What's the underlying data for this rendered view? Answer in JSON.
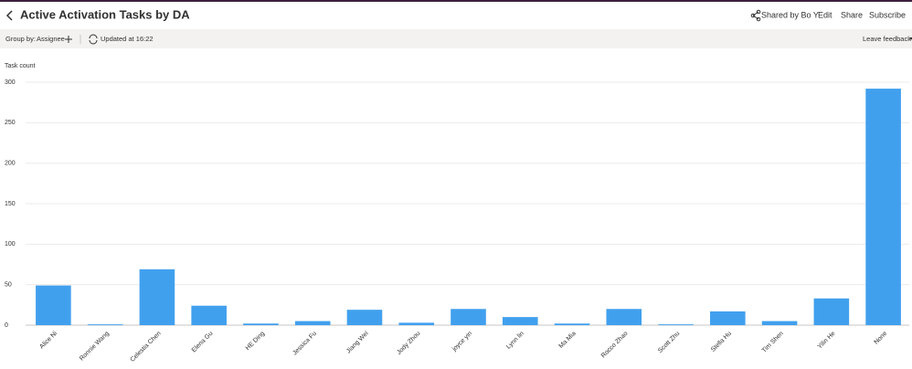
{
  "header": {
    "title": "Active Activation Tasks by DA",
    "shared": "Shared by Bo Y",
    "actions": [
      "Edit",
      "Share",
      "Subscribe"
    ]
  },
  "toolbar": {
    "group_by_label": "Group by:",
    "group_by_value": "Assignee",
    "updated": "Updated at 16:22",
    "feedback": "Leave feedback"
  },
  "chart_data": {
    "type": "bar",
    "y_label": "Task count",
    "categories": [
      "Alice Ni",
      "Ronnie Wang",
      "Celestia Chen",
      "Elena Gu",
      "HE Ding",
      "Jessica Fu",
      "Jiang Wei",
      "Jody Zhou",
      "joyce yin",
      "Lynn lin",
      "Ma Mia",
      "Rocco Zhao",
      "Scott Zhu",
      "Stella Hu",
      "Tim Shen",
      "Yilin He",
      "None"
    ],
    "values": [
      49,
      1,
      69,
      24,
      2,
      5,
      19,
      3,
      20,
      10,
      2,
      20,
      1,
      17,
      5,
      33,
      292
    ],
    "color": "#41a0ee",
    "ylim": [
      0,
      300
    ],
    "yticks": [
      0,
      50,
      100,
      150,
      200,
      250,
      300
    ],
    "grid": true
  }
}
